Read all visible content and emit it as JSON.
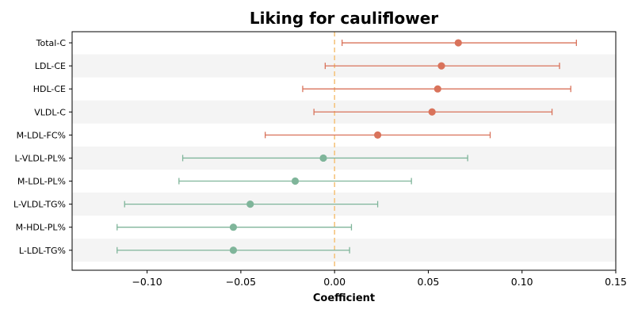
{
  "chart_data": {
    "type": "forest",
    "title": "Liking for cauliflower",
    "xlabel": "Coefficient",
    "ylabel": "",
    "xlim": [
      -0.14,
      0.15
    ],
    "xticks": [
      -0.1,
      -0.05,
      0.0,
      0.05,
      0.1,
      0.15
    ],
    "xtick_labels": [
      "−0.10",
      "−0.05",
      "0.00",
      "0.05",
      "0.10",
      "0.15"
    ],
    "reference_line": 0.0,
    "reference_line_color": "#f5c47e",
    "positive_color": "#d9735b",
    "negative_color": "#7fb59a",
    "band_color": "#f4f4f4",
    "grid": false,
    "categories": [
      "Total-C",
      "LDL-CE",
      "HDL-CE",
      "VLDL-C",
      "M-LDL-FC%",
      "L-VLDL-PL%",
      "M-LDL-PL%",
      "L-VLDL-TG%",
      "M-HDL-PL%",
      "L-LDL-TG%"
    ],
    "estimates": [
      0.066,
      0.057,
      0.055,
      0.052,
      0.023,
      -0.006,
      -0.021,
      -0.045,
      -0.054,
      -0.054
    ],
    "ci_lower": [
      0.004,
      -0.005,
      -0.017,
      -0.011,
      -0.037,
      -0.081,
      -0.083,
      -0.112,
      -0.116,
      -0.116
    ],
    "ci_upper": [
      0.129,
      0.12,
      0.126,
      0.116,
      0.083,
      0.071,
      0.041,
      0.023,
      0.009,
      0.008
    ]
  }
}
